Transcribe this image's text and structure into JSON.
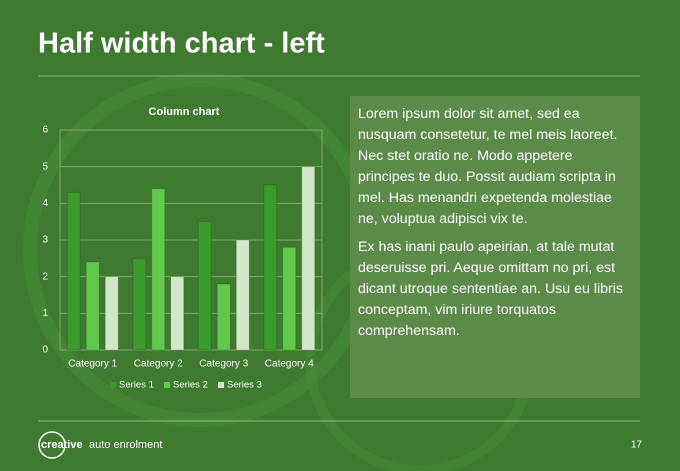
{
  "slide": {
    "title": "Half width chart - left",
    "body": [
      "Lorem ipsum dolor sit amet, sed ea nusquam consetetur, te mel meis laoreet. Nec stet oratio ne. Modo appetere principes te duo. Possit audiam scripta in mel. Has menandri expetenda molestiae ne, voluptua adipisci vix te.",
      "Ex has inani paulo apeirian, at tale mutat deseruisse pri. Aeque omittam no pri, est dicant utroque sententiae an. Usu eu libris conceptam, vim iriure torquatos comprehensam."
    ],
    "logo": {
      "brand": "creative",
      "product": "auto enrolment"
    },
    "page_number": "17"
  },
  "chart_data": {
    "type": "bar",
    "title": "Column chart",
    "categories": [
      "Category 1",
      "Category 2",
      "Category 3",
      "Category 4"
    ],
    "series": [
      {
        "name": "Series 1",
        "color": "#3a9a2c",
        "values": [
          4.3,
          2.5,
          3.5,
          4.5
        ]
      },
      {
        "name": "Series 2",
        "color": "#62c84a",
        "values": [
          2.4,
          4.4,
          1.8,
          2.8
        ]
      },
      {
        "name": "Series 3",
        "color": "#cfe8c6",
        "values": [
          2,
          2,
          3,
          5
        ]
      }
    ],
    "ylim": [
      0,
      6
    ],
    "yticks": [
      0,
      1,
      2,
      3,
      4,
      5,
      6
    ],
    "grid": true,
    "legend": "bottom"
  }
}
